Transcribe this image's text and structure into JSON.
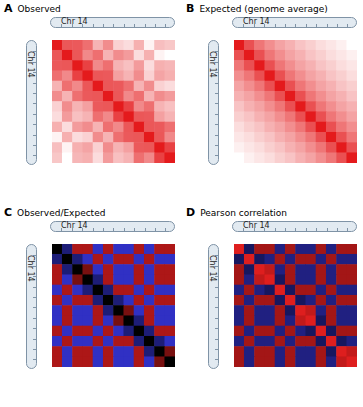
{
  "chart_data": [
    {
      "type": "heatmap",
      "panel": "A",
      "title": "Observed",
      "xlabel": "Chr 14",
      "ylabel": "Chr 14",
      "tick_labels": false,
      "cells": [
        [
          100,
          32,
          30.8,
          21,
          6.6,
          12.6,
          4.2,
          3.6,
          7,
          2.7,
          5.6,
          4.9
        ],
        [
          32,
          100,
          32,
          13.2,
          21,
          6.6,
          12.6,
          9.8,
          3.6,
          7,
          2.7,
          2.4
        ],
        [
          30.8,
          32,
          100,
          48,
          13.2,
          21,
          6.6,
          5.4,
          9.8,
          3.6,
          7,
          6.3
        ],
        [
          21,
          13.2,
          48,
          100,
          32,
          30.8,
          9,
          6.6,
          12.6,
          4.2,
          8.4,
          7
        ],
        [
          6.6,
          21,
          13.2,
          32,
          100,
          32,
          30.8,
          21,
          6.6,
          12.6,
          4.2,
          3.6
        ],
        [
          12.6,
          6.6,
          21,
          30.8,
          32,
          100,
          32,
          13.2,
          21,
          6.6,
          12.6,
          9.8
        ],
        [
          4.2,
          12.6,
          6.6,
          9,
          30.8,
          32,
          100,
          48,
          13.2,
          21,
          6.6,
          5.4
        ],
        [
          3.6,
          9.8,
          5.4,
          6.6,
          21,
          13.2,
          48,
          100,
          32,
          30.8,
          9,
          6.6
        ],
        [
          7,
          3.6,
          9.8,
          12.6,
          6.6,
          21,
          13.2,
          32,
          100,
          32,
          30.8,
          21
        ],
        [
          2.7,
          7,
          3.6,
          4.2,
          12.6,
          6.6,
          21,
          30.8,
          32,
          100,
          32,
          13.2
        ],
        [
          5.6,
          2.7,
          7,
          8.4,
          4.2,
          12.6,
          6.6,
          9,
          30.8,
          32,
          100,
          48
        ],
        [
          4.9,
          2.4,
          6.3,
          7,
          3.6,
          9.8,
          5.4,
          6.6,
          21,
          13.2,
          48,
          100
        ]
      ]
    },
    {
      "type": "heatmap",
      "panel": "B",
      "title": "Expected (genome average)",
      "xlabel": "Chr 14",
      "ylabel": "Chr 14",
      "tick_labels": false,
      "cells": [
        [
          100,
          40,
          22,
          15,
          11,
          9,
          7,
          6,
          5,
          4.5,
          4,
          3.5
        ],
        [
          40,
          100,
          40,
          22,
          15,
          11,
          9,
          7,
          6,
          5,
          4.5,
          4
        ],
        [
          22,
          40,
          100,
          40,
          22,
          15,
          11,
          9,
          7,
          6,
          5,
          4.5
        ],
        [
          15,
          22,
          40,
          100,
          40,
          22,
          15,
          11,
          9,
          7,
          6,
          5
        ],
        [
          11,
          15,
          22,
          40,
          100,
          40,
          22,
          15,
          11,
          9,
          7,
          6
        ],
        [
          9,
          11,
          15,
          22,
          40,
          100,
          40,
          22,
          15,
          11,
          9,
          7
        ],
        [
          7,
          9,
          11,
          15,
          22,
          40,
          100,
          40,
          22,
          15,
          11,
          9
        ],
        [
          6,
          7,
          9,
          11,
          15,
          22,
          40,
          100,
          40,
          22,
          15,
          11
        ],
        [
          5,
          6,
          7,
          9,
          11,
          15,
          22,
          40,
          100,
          40,
          22,
          15
        ],
        [
          4.5,
          5,
          6,
          7,
          9,
          11,
          15,
          22,
          40,
          100,
          40,
          22
        ],
        [
          4,
          4.5,
          5,
          6,
          7,
          9,
          11,
          15,
          22,
          40,
          100,
          40
        ],
        [
          3.5,
          4,
          4.5,
          5,
          6,
          7,
          9,
          11,
          15,
          22,
          40,
          100
        ]
      ]
    },
    {
      "type": "heatmap",
      "panel": "C",
      "title": "Observed/Expected",
      "xlabel": "Chr 14",
      "ylabel": "Chr 14",
      "tick_labels": false,
      "cells": [
        [
          1,
          0.8,
          1.4,
          1.4,
          0.6,
          1.4,
          0.6,
          0.6,
          1.4,
          0.6,
          1.4,
          1.4
        ],
        [
          0.8,
          1,
          0.8,
          0.6,
          1.4,
          0.6,
          1.4,
          1.4,
          0.6,
          1.4,
          0.6,
          0.6
        ],
        [
          1.4,
          0.8,
          1,
          1.2,
          0.6,
          1.4,
          0.6,
          0.6,
          1.4,
          0.6,
          1.4,
          1.4
        ],
        [
          1.4,
          0.6,
          1.2,
          1,
          0.8,
          1.4,
          0.6,
          0.6,
          1.4,
          0.6,
          1.4,
          1.4
        ],
        [
          0.6,
          1.4,
          0.6,
          0.8,
          1,
          0.8,
          1.4,
          1.4,
          0.6,
          1.4,
          0.6,
          0.6
        ],
        [
          1.4,
          0.6,
          1.4,
          1.4,
          0.8,
          1,
          0.8,
          0.6,
          1.4,
          0.6,
          1.4,
          1.4
        ],
        [
          0.6,
          1.4,
          0.6,
          0.6,
          1.4,
          0.8,
          1,
          1.2,
          0.6,
          1.4,
          0.6,
          0.6
        ],
        [
          0.6,
          1.4,
          0.6,
          0.6,
          1.4,
          0.6,
          1.2,
          1,
          0.8,
          1.4,
          0.6,
          0.6
        ],
        [
          1.4,
          0.6,
          1.4,
          1.4,
          0.6,
          1.4,
          0.6,
          0.8,
          1,
          0.8,
          1.4,
          1.4
        ],
        [
          0.6,
          1.4,
          0.6,
          0.6,
          1.4,
          0.6,
          1.4,
          1.4,
          0.8,
          1,
          0.8,
          0.6
        ],
        [
          1.4,
          0.6,
          1.4,
          1.4,
          0.6,
          1.4,
          0.6,
          0.6,
          1.4,
          0.8,
          1,
          1.2
        ],
        [
          1.4,
          0.6,
          1.4,
          1.4,
          0.6,
          1.4,
          0.6,
          0.6,
          1.4,
          0.6,
          1.2,
          1
        ]
      ]
    },
    {
      "type": "heatmap",
      "panel": "D",
      "title": "Pearson correlation",
      "xlabel": "Chr 14",
      "ylabel": "Chr 14",
      "tick_labels": false,
      "cells": [
        [
          1,
          -0.3,
          0.6,
          0.6,
          -0.5,
          0.6,
          -0.5,
          -0.5,
          0.6,
          -0.5,
          0.6,
          0.6
        ],
        [
          -0.3,
          1,
          -0.3,
          -0.5,
          0.6,
          -0.5,
          0.6,
          0.6,
          -0.5,
          0.6,
          -0.5,
          -0.5
        ],
        [
          0.6,
          -0.3,
          1,
          0.8,
          -0.5,
          0.6,
          -0.5,
          -0.5,
          0.6,
          -0.5,
          0.6,
          0.6
        ],
        [
          0.6,
          -0.5,
          0.8,
          1,
          -0.3,
          0.6,
          -0.5,
          -0.5,
          0.6,
          -0.5,
          0.6,
          0.6
        ],
        [
          -0.5,
          0.6,
          -0.5,
          -0.3,
          1,
          -0.3,
          0.6,
          0.6,
          -0.5,
          0.6,
          -0.5,
          -0.5
        ],
        [
          0.6,
          -0.5,
          0.6,
          0.6,
          -0.3,
          1,
          -0.3,
          -0.5,
          0.6,
          -0.5,
          0.6,
          0.6
        ],
        [
          -0.5,
          0.6,
          -0.5,
          -0.5,
          0.6,
          -0.3,
          1,
          0.8,
          -0.5,
          0.6,
          -0.5,
          -0.5
        ],
        [
          -0.5,
          0.6,
          -0.5,
          -0.5,
          0.6,
          -0.5,
          0.8,
          1,
          -0.3,
          0.6,
          -0.5,
          -0.5
        ],
        [
          0.6,
          -0.5,
          0.6,
          0.6,
          -0.5,
          0.6,
          -0.5,
          -0.3,
          1,
          -0.3,
          0.6,
          0.6
        ],
        [
          -0.5,
          0.6,
          -0.5,
          -0.5,
          0.6,
          -0.5,
          0.6,
          0.6,
          -0.3,
          1,
          -0.3,
          -0.5
        ],
        [
          0.6,
          -0.5,
          0.6,
          0.6,
          -0.5,
          0.6,
          -0.5,
          -0.5,
          0.6,
          -0.3,
          1,
          0.8
        ],
        [
          0.6,
          -0.5,
          0.6,
          0.6,
          -0.5,
          0.6,
          -0.5,
          -0.5,
          0.6,
          -0.5,
          0.8,
          1
        ]
      ]
    }
  ]
}
